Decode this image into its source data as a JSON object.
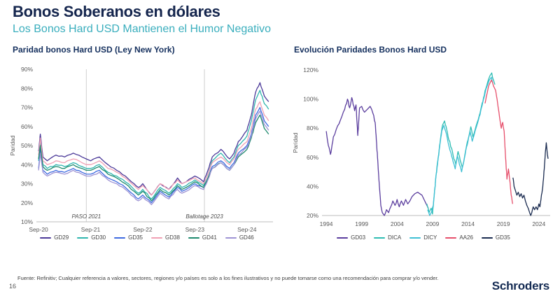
{
  "page": {
    "title": "Bonos Soberanos en dólares",
    "subtitle": "Los Bonos Hard USD Mantienen el Humor Negativo",
    "footnote": "Fuente: Refinitiv; Cualquier referencia a valores, sectores, regiones y/o países es solo a los fines ilustrativos y no puede tomarse como una recomendación para comprar y/o vender.",
    "page_number": "16",
    "brand": "Schroders"
  },
  "colors": {
    "title_navy": "#14254d",
    "subtitle_teal": "#3aaebd",
    "axis_text": "#595959",
    "baseline": "#bdbdbd",
    "refline": "#cfcfcf"
  },
  "chart_data": [
    {
      "type": "line",
      "title": "Paridad bonos Hard USD (Ley New York)",
      "ylabel": "Paridad",
      "ylim": [
        10,
        90
      ],
      "yticks": [
        90,
        80,
        70,
        60,
        50,
        40,
        30,
        20,
        10
      ],
      "xlim": [
        -0.5,
        54
      ],
      "xticks": [
        {
          "x": 0,
          "label": "Sep-20"
        },
        {
          "x": 12,
          "label": "Sep-21"
        },
        {
          "x": 24,
          "label": "Sep-22"
        },
        {
          "x": 36,
          "label": "Sep-23"
        },
        {
          "x": 48,
          "label": "Sep-24"
        }
      ],
      "x_unit": "months since Sep-2020",
      "annotations": [
        {
          "x": 11,
          "label": "PASO 2021"
        },
        {
          "x": 38.2,
          "label": "Ballotage 2023"
        }
      ],
      "grid": false,
      "legend_position": "bottom",
      "jitter": 1.0,
      "x": [
        0,
        0.4,
        1,
        2,
        4,
        6,
        8,
        10,
        11,
        12,
        14,
        16,
        18,
        20,
        22,
        23,
        24,
        26,
        27,
        28,
        30,
        32,
        33,
        34,
        36,
        38,
        39,
        40,
        42,
        44,
        45,
        46,
        48,
        49,
        50,
        51,
        52,
        53
      ],
      "series": [
        {
          "name": "GD29",
          "color": "#4c3a99",
          "values": [
            47,
            56,
            44,
            42,
            45,
            44,
            46,
            44,
            43,
            42,
            44,
            40,
            37,
            34,
            30,
            28,
            30,
            24,
            27,
            30,
            27,
            33,
            30,
            31,
            34,
            31,
            37,
            44,
            48,
            43,
            46,
            52,
            58,
            66,
            78,
            83,
            76,
            73
          ]
        },
        {
          "name": "GD30",
          "color": "#2fb5ae",
          "values": [
            42,
            52,
            40,
            38,
            40,
            39,
            41,
            39,
            38,
            38,
            40,
            36,
            34,
            31,
            27,
            25,
            27,
            22,
            25,
            28,
            25,
            30,
            28,
            29,
            32,
            29,
            35,
            42,
            46,
            41,
            44,
            50,
            55,
            63,
            74,
            79,
            72,
            69
          ]
        },
        {
          "name": "GD35",
          "color": "#3f6be0",
          "values": [
            38,
            48,
            37,
            35,
            37,
            36,
            38,
            36,
            35,
            35,
            37,
            33,
            31,
            28,
            24,
            22,
            24,
            20,
            23,
            26,
            23,
            28,
            26,
            27,
            30,
            28,
            33,
            39,
            42,
            38,
            41,
            46,
            50,
            56,
            66,
            70,
            63,
            60
          ]
        },
        {
          "name": "GD38",
          "color": "#f0a0b4",
          "values": [
            45,
            54,
            42,
            40,
            42,
            41,
            43,
            41,
            40,
            40,
            42,
            38,
            36,
            33,
            29,
            27,
            29,
            24,
            27,
            30,
            27,
            32,
            30,
            31,
            33,
            30,
            35,
            41,
            44,
            40,
            43,
            48,
            52,
            59,
            69,
            73,
            66,
            63
          ]
        },
        {
          "name": "GD41",
          "color": "#1f8a6e",
          "values": [
            43,
            50,
            39,
            37,
            39,
            38,
            40,
            38,
            37,
            37,
            39,
            35,
            33,
            30,
            26,
            24,
            26,
            21,
            24,
            27,
            24,
            29,
            27,
            28,
            31,
            28,
            33,
            38,
            41,
            37,
            40,
            44,
            48,
            54,
            62,
            66,
            59,
            56
          ]
        },
        {
          "name": "GD46",
          "color": "#9e93d4",
          "values": [
            37,
            46,
            36,
            34,
            36,
            35,
            37,
            35,
            34,
            34,
            36,
            32,
            30,
            27,
            23,
            21,
            23,
            19,
            22,
            25,
            22,
            27,
            25,
            26,
            29,
            27,
            32,
            38,
            41,
            37,
            40,
            45,
            49,
            55,
            64,
            68,
            61,
            58
          ]
        }
      ]
    },
    {
      "type": "line",
      "title": "Evolución Paridades Bonos Hard USD",
      "ylabel": "Paridad",
      "ylim": [
        20,
        120
      ],
      "yticks": [
        120,
        100,
        80,
        60,
        40,
        20
      ],
      "xlim": [
        1993.4,
        2025.6
      ],
      "xticks": [
        {
          "x": 1994,
          "label": "1994"
        },
        {
          "x": 1999,
          "label": "1999"
        },
        {
          "x": 2004,
          "label": "2004"
        },
        {
          "x": 2009,
          "label": "2009"
        },
        {
          "x": 2014,
          "label": "2014"
        },
        {
          "x": 2019,
          "label": "2019"
        },
        {
          "x": 2024,
          "label": "2024"
        }
      ],
      "x_unit": "year",
      "annotations": [],
      "grid": false,
      "legend_position": "bottom",
      "jitter": 1.6,
      "series": [
        {
          "name": "GD03",
          "color": "#5b3e9e",
          "points": [
            [
              1994.0,
              78
            ],
            [
              1994.3,
              68
            ],
            [
              1994.6,
              62
            ],
            [
              1995.0,
              74
            ],
            [
              1995.4,
              79
            ],
            [
              1995.8,
              83
            ],
            [
              1996.2,
              88
            ],
            [
              1996.6,
              93
            ],
            [
              1997.0,
              100
            ],
            [
              1997.3,
              94
            ],
            [
              1997.6,
              101
            ],
            [
              1998.0,
              92
            ],
            [
              1998.2,
              96
            ],
            [
              1998.45,
              75
            ],
            [
              1998.7,
              94
            ],
            [
              1999.0,
              95
            ],
            [
              1999.4,
              91
            ],
            [
              1999.8,
              93
            ],
            [
              2000.2,
              95
            ],
            [
              2000.6,
              90
            ],
            [
              2000.9,
              84
            ],
            [
              2001.1,
              70
            ],
            [
              2001.3,
              55
            ],
            [
              2001.5,
              40
            ],
            [
              2001.7,
              27
            ],
            [
              2001.9,
              22
            ],
            [
              2002.2,
              20
            ],
            [
              2002.5,
              24
            ],
            [
              2002.8,
              22
            ],
            [
              2003.1,
              26
            ],
            [
              2003.4,
              30
            ],
            [
              2003.7,
              27
            ],
            [
              2004.0,
              31
            ],
            [
              2004.3,
              26
            ],
            [
              2004.6,
              30
            ],
            [
              2004.9,
              27
            ],
            [
              2005.2,
              31
            ],
            [
              2005.5,
              28
            ],
            [
              2005.8,
              30
            ],
            [
              2006.1,
              33
            ],
            [
              2006.5,
              35
            ],
            [
              2006.9,
              36
            ],
            [
              2007.2,
              35
            ],
            [
              2007.5,
              34
            ],
            [
              2007.8,
              31
            ],
            [
              2008.1,
              28
            ],
            [
              2008.4,
              25
            ]
          ]
        },
        {
          "name": "DICA",
          "color": "#2fbdb3",
          "points": [
            [
              2008.2,
              28
            ],
            [
              2008.5,
              22
            ],
            [
              2008.8,
              25
            ],
            [
              2009.0,
              21
            ],
            [
              2009.2,
              32
            ],
            [
              2009.5,
              48
            ],
            [
              2009.8,
              60
            ],
            [
              2010.1,
              72
            ],
            [
              2010.4,
              82
            ],
            [
              2010.7,
              85
            ],
            [
              2011.0,
              79
            ],
            [
              2011.3,
              72
            ],
            [
              2011.7,
              66
            ],
            [
              2012.0,
              59
            ],
            [
              2012.3,
              55
            ],
            [
              2012.6,
              64
            ],
            [
              2012.9,
              58
            ],
            [
              2013.2,
              53
            ],
            [
              2013.5,
              60
            ],
            [
              2013.8,
              68
            ],
            [
              2014.1,
              74
            ],
            [
              2014.4,
              81
            ],
            [
              2014.7,
              74
            ],
            [
              2015.0,
              79
            ],
            [
              2015.3,
              84
            ],
            [
              2015.6,
              89
            ],
            [
              2015.9,
              95
            ],
            [
              2016.2,
              101
            ],
            [
              2016.5,
              107
            ],
            [
              2016.8,
              112
            ],
            [
              2017.1,
              116
            ],
            [
              2017.35,
              118
            ],
            [
              2017.6,
              113
            ],
            [
              2017.8,
              110
            ]
          ]
        },
        {
          "name": "DICY",
          "color": "#3fbfd4",
          "points": [
            [
              2008.3,
              24
            ],
            [
              2008.6,
              20
            ],
            [
              2008.9,
              23
            ],
            [
              2009.1,
              27
            ],
            [
              2009.4,
              43
            ],
            [
              2009.7,
              55
            ],
            [
              2010.0,
              67
            ],
            [
              2010.3,
              78
            ],
            [
              2010.6,
              82
            ],
            [
              2010.9,
              77
            ],
            [
              2011.2,
              70
            ],
            [
              2011.6,
              63
            ],
            [
              2011.9,
              57
            ],
            [
              2012.2,
              52
            ],
            [
              2012.5,
              61
            ],
            [
              2012.8,
              55
            ],
            [
              2013.1,
              50
            ],
            [
              2013.4,
              57
            ],
            [
              2013.7,
              65
            ],
            [
              2014.0,
              71
            ],
            [
              2014.3,
              78
            ],
            [
              2014.6,
              71
            ],
            [
              2014.9,
              76
            ],
            [
              2015.2,
              81
            ],
            [
              2015.5,
              86
            ],
            [
              2015.8,
              92
            ],
            [
              2016.1,
              98
            ],
            [
              2016.4,
              104
            ],
            [
              2016.7,
              109
            ],
            [
              2017.0,
              113
            ],
            [
              2017.3,
              115
            ],
            [
              2017.5,
              111
            ]
          ]
        },
        {
          "name": "AA26",
          "color": "#e64f6b",
          "points": [
            [
              2016.4,
              97
            ],
            [
              2016.7,
              104
            ],
            [
              2017.0,
              110
            ],
            [
              2017.3,
              113
            ],
            [
              2017.6,
              109
            ],
            [
              2017.9,
              106
            ],
            [
              2018.1,
              100
            ],
            [
              2018.3,
              93
            ],
            [
              2018.5,
              86
            ],
            [
              2018.7,
              80
            ],
            [
              2018.9,
              84
            ],
            [
              2019.1,
              78
            ],
            [
              2019.3,
              60
            ],
            [
              2019.5,
              45
            ],
            [
              2019.7,
              52
            ],
            [
              2019.9,
              44
            ],
            [
              2020.1,
              34
            ],
            [
              2020.3,
              28
            ]
          ]
        },
        {
          "name": "GD35",
          "color": "#1a2b50",
          "points": [
            [
              2020.35,
              46
            ],
            [
              2020.5,
              40
            ],
            [
              2020.7,
              37
            ],
            [
              2020.9,
              34
            ],
            [
              2021.1,
              36
            ],
            [
              2021.3,
              33
            ],
            [
              2021.5,
              35
            ],
            [
              2021.7,
              32
            ],
            [
              2021.9,
              34
            ],
            [
              2022.1,
              30
            ],
            [
              2022.3,
              27
            ],
            [
              2022.5,
              25
            ],
            [
              2022.7,
              22
            ],
            [
              2022.85,
              20
            ],
            [
              2023.0,
              22
            ],
            [
              2023.2,
              26
            ],
            [
              2023.4,
              24
            ],
            [
              2023.6,
              26
            ],
            [
              2023.8,
              24
            ],
            [
              2024.0,
              28
            ],
            [
              2024.15,
              26
            ],
            [
              2024.3,
              31
            ],
            [
              2024.5,
              38
            ],
            [
              2024.65,
              45
            ],
            [
              2024.8,
              55
            ],
            [
              2024.95,
              65
            ],
            [
              2025.05,
              70
            ],
            [
              2025.2,
              62
            ],
            [
              2025.3,
              59
            ]
          ]
        }
      ]
    }
  ]
}
